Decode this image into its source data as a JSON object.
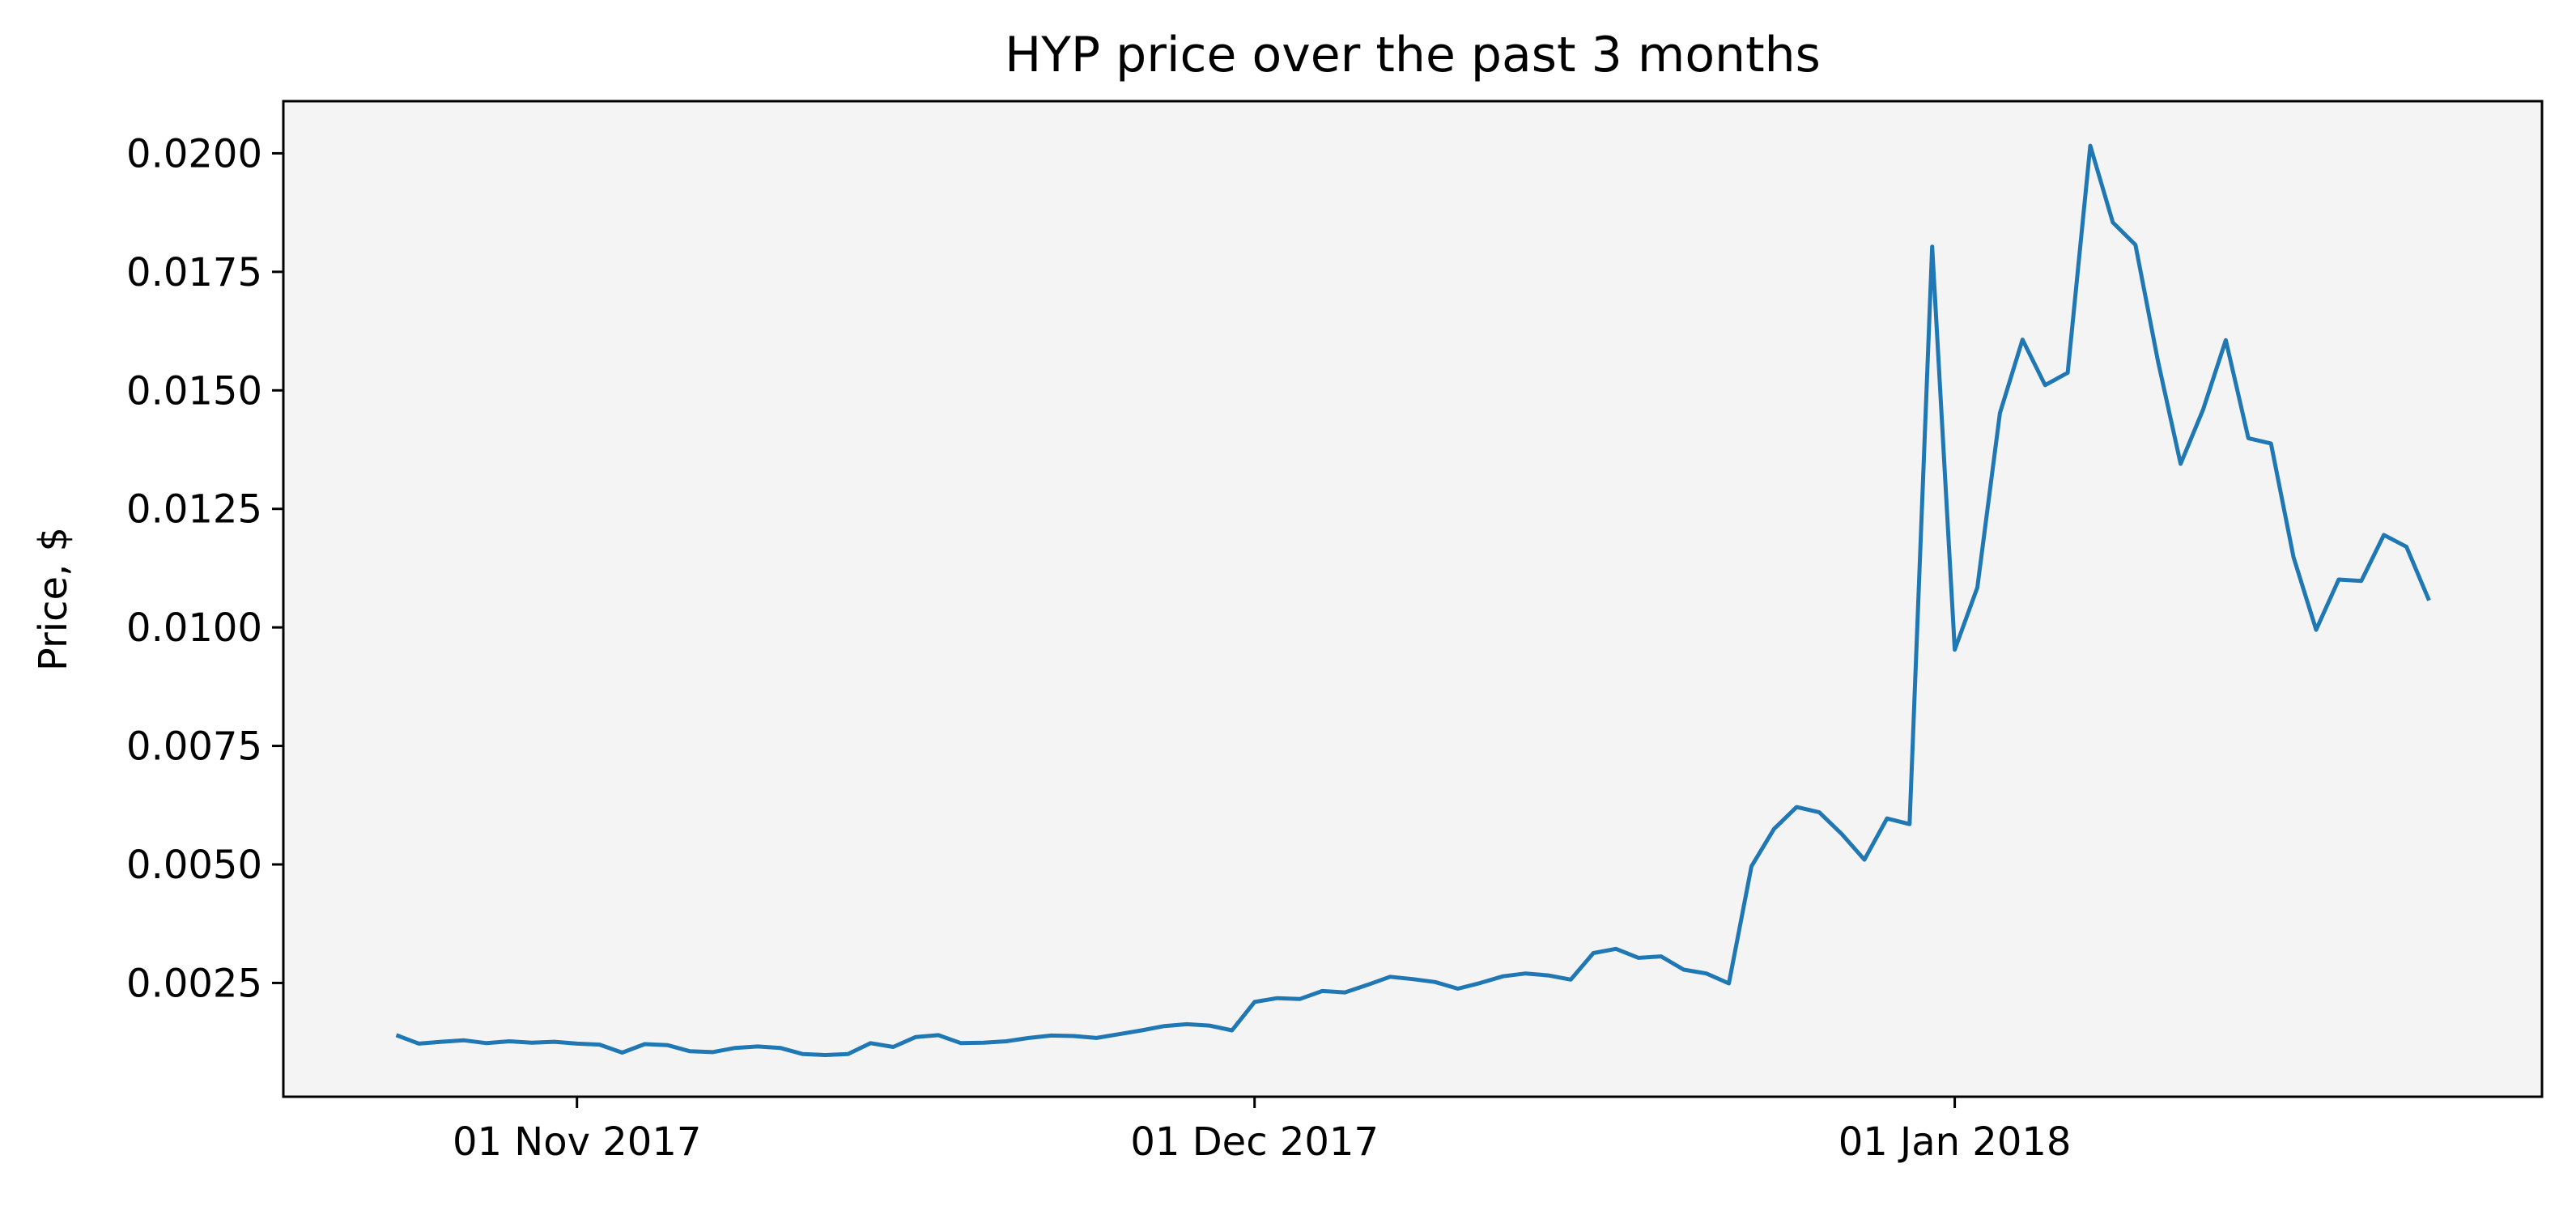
{
  "chart_data": {
    "type": "line",
    "title": "HYP price over the past 3 months",
    "xlabel": "",
    "ylabel": "Price, $",
    "background_color": "#f4f4f4",
    "line_color": "#1f77b4",
    "grid": false,
    "legend": "none",
    "xlim": [
      "2017-10-19",
      "2018-01-27"
    ],
    "ylim": [
      0.0001,
      0.0211
    ],
    "x_ticks": [
      {
        "date": "2017-11-01",
        "label": "01 Nov 2017"
      },
      {
        "date": "2017-12-01",
        "label": "01 Dec 2017"
      },
      {
        "date": "2018-01-01",
        "label": "01 Jan 2018"
      }
    ],
    "y_ticks": [
      {
        "value": 0.0025,
        "label": "0.0025"
      },
      {
        "value": 0.005,
        "label": "0.0050"
      },
      {
        "value": 0.0075,
        "label": "0.0075"
      },
      {
        "value": 0.01,
        "label": "0.0100"
      },
      {
        "value": 0.0125,
        "label": "0.0125"
      },
      {
        "value": 0.015,
        "label": "0.0150"
      },
      {
        "value": 0.0175,
        "label": "0.0175"
      },
      {
        "value": 0.02,
        "label": "0.0200"
      }
    ],
    "start_date": "2017-10-24",
    "series": [
      {
        "values": [
          0.0014,
          0.00122,
          0.00126,
          0.00129,
          0.00123,
          0.00127,
          0.00124,
          0.00126,
          0.00122,
          0.0012,
          0.00103,
          0.00121,
          0.00119,
          0.00106,
          0.00104,
          0.00113,
          0.00116,
          0.00113,
          0.001,
          0.00098,
          0.001,
          0.00123,
          0.00115,
          0.00136,
          0.0014,
          0.00123,
          0.00124,
          0.00127,
          0.00134,
          0.00139,
          0.00138,
          0.00134,
          0.00142,
          0.0015,
          0.00159,
          0.00163,
          0.0016,
          0.0015,
          0.0021,
          0.00218,
          0.00216,
          0.00233,
          0.0023,
          0.00246,
          0.00263,
          0.00258,
          0.00252,
          0.00238,
          0.0025,
          0.00264,
          0.0027,
          0.00266,
          0.00257,
          0.00313,
          0.00322,
          0.00303,
          0.00306,
          0.00278,
          0.0027,
          0.00249,
          0.00496,
          0.00575,
          0.00621,
          0.0061,
          0.00564,
          0.0051,
          0.00597,
          0.00585,
          0.01803,
          0.00953,
          0.01084,
          0.01452,
          0.01607,
          0.01511,
          0.01537,
          0.02016,
          0.01854,
          0.01807,
          0.01561,
          0.01345,
          0.0146,
          0.01606,
          0.01399,
          0.01388,
          0.01148,
          0.00995,
          0.01101,
          0.01098,
          0.01195,
          0.0117,
          0.01057
        ]
      }
    ]
  }
}
